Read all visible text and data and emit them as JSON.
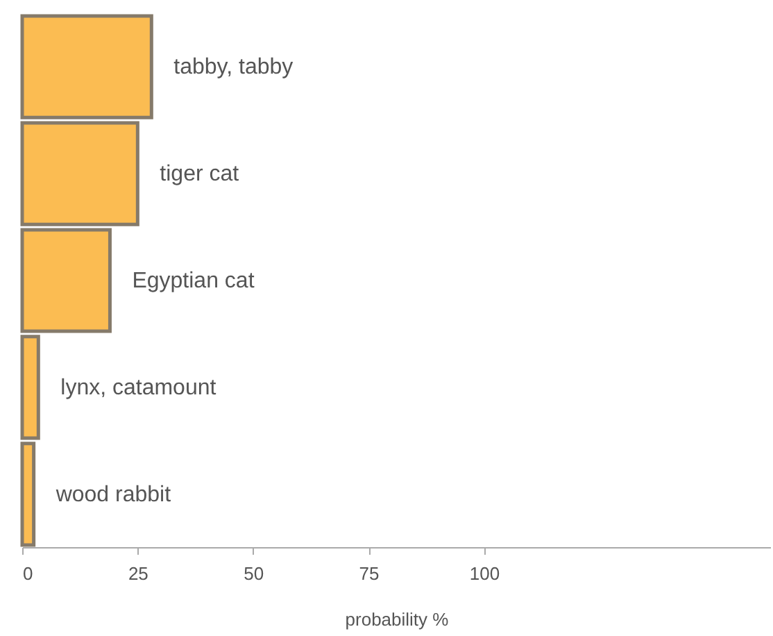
{
  "chart_data": {
    "type": "bar",
    "orientation": "horizontal",
    "xlabel": "probability %",
    "categories": [
      "tabby, tabby",
      "tiger cat",
      "Egyptian cat",
      "lynx, catamount",
      "wood rabbit"
    ],
    "values": [
      28,
      25,
      19,
      3.5,
      2.5
    ],
    "color": "#fbbc52",
    "xlim": [
      0,
      162
    ],
    "xticks": [
      0,
      25,
      50,
      75,
      100
    ],
    "grid": false
  }
}
